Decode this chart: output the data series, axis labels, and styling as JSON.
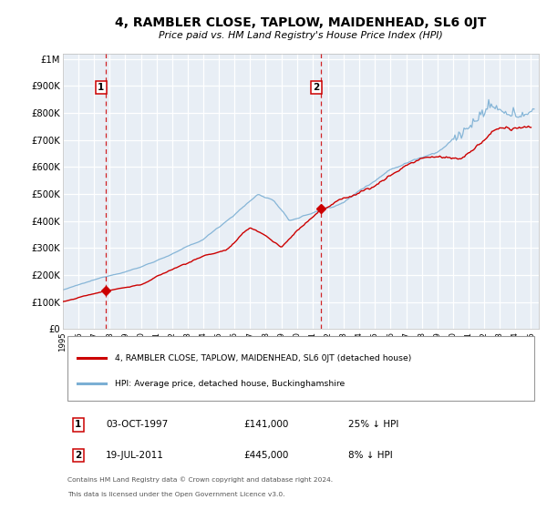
{
  "title": "4, RAMBLER CLOSE, TAPLOW, MAIDENHEAD, SL6 0JT",
  "subtitle": "Price paid vs. HM Land Registry's House Price Index (HPI)",
  "plot_bg_color": "#e8eef5",
  "grid_color": "#ffffff",
  "x_min": 1995.0,
  "x_max": 2025.5,
  "y_min": 0,
  "y_max": 1000000,
  "y_ticks": [
    0,
    100000,
    200000,
    300000,
    400000,
    500000,
    600000,
    700000,
    800000,
    900000,
    1000000
  ],
  "y_tick_labels": [
    "£0",
    "£100K",
    "£200K",
    "£300K",
    "£400K",
    "£500K",
    "£600K",
    "£700K",
    "£800K",
    "£900K",
    "£1M"
  ],
  "sale1_x": 1997.75,
  "sale1_y": 141000,
  "sale2_x": 2011.54,
  "sale2_y": 445000,
  "sale1_date": "03-OCT-1997",
  "sale1_price": "£141,000",
  "sale1_hpi": "25% ↓ HPI",
  "sale2_date": "19-JUL-2011",
  "sale2_price": "£445,000",
  "sale2_hpi": "8% ↓ HPI",
  "red_line_color": "#cc0000",
  "blue_line_color": "#7bafd4",
  "vline_color": "#cc0000",
  "legend_label_red": "4, RAMBLER CLOSE, TAPLOW, MAIDENHEAD, SL6 0JT (detached house)",
  "legend_label_blue": "HPI: Average price, detached house, Buckinghamshire",
  "footer_line1": "Contains HM Land Registry data © Crown copyright and database right 2024.",
  "footer_line2": "This data is licensed under the Open Government Licence v3.0."
}
